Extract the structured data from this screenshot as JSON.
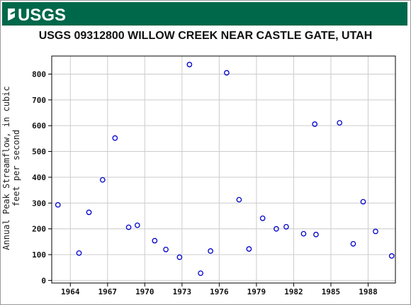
{
  "header": {
    "logo_text": "USGS",
    "banner_color": "#00684a"
  },
  "chart_data": {
    "type": "scatter",
    "title": "USGS 09312800 WILLOW CREEK NEAR CASTLE GATE, UTAH",
    "xlabel": "",
    "ylabel": "Annual Peak Streamflow, in cubic feet per second",
    "xlim": [
      1962.5,
      1990.2
    ],
    "ylim": [
      -10,
      870
    ],
    "x_ticks": [
      1964,
      1967,
      1970,
      1973,
      1976,
      1979,
      1982,
      1985,
      1988
    ],
    "y_ticks": [
      0,
      100,
      200,
      300,
      400,
      500,
      600,
      700,
      800
    ],
    "grid": true,
    "marker_color": "#0000cc",
    "series": [
      {
        "x": [
          1963,
          1964.7,
          1965.5,
          1966.6,
          1967.6,
          1968.7,
          1969.4,
          1970.8,
          1971.7,
          1972.8,
          1973.6,
          1974.5,
          1975.3,
          1976.6,
          1977.6,
          1978.4,
          1979.5,
          1980.6,
          1981.4,
          1982.8,
          1983.7,
          1983.8,
          1985.7,
          1986.8,
          1987.6,
          1988.6,
          1989.9
        ],
        "y": [
          293,
          106,
          264,
          390,
          552,
          206,
          214,
          154,
          120,
          90,
          837,
          28,
          114,
          805,
          313,
          122,
          241,
          200,
          208,
          181,
          606,
          178,
          611,
          142,
          305,
          190,
          95
        ]
      }
    ]
  }
}
